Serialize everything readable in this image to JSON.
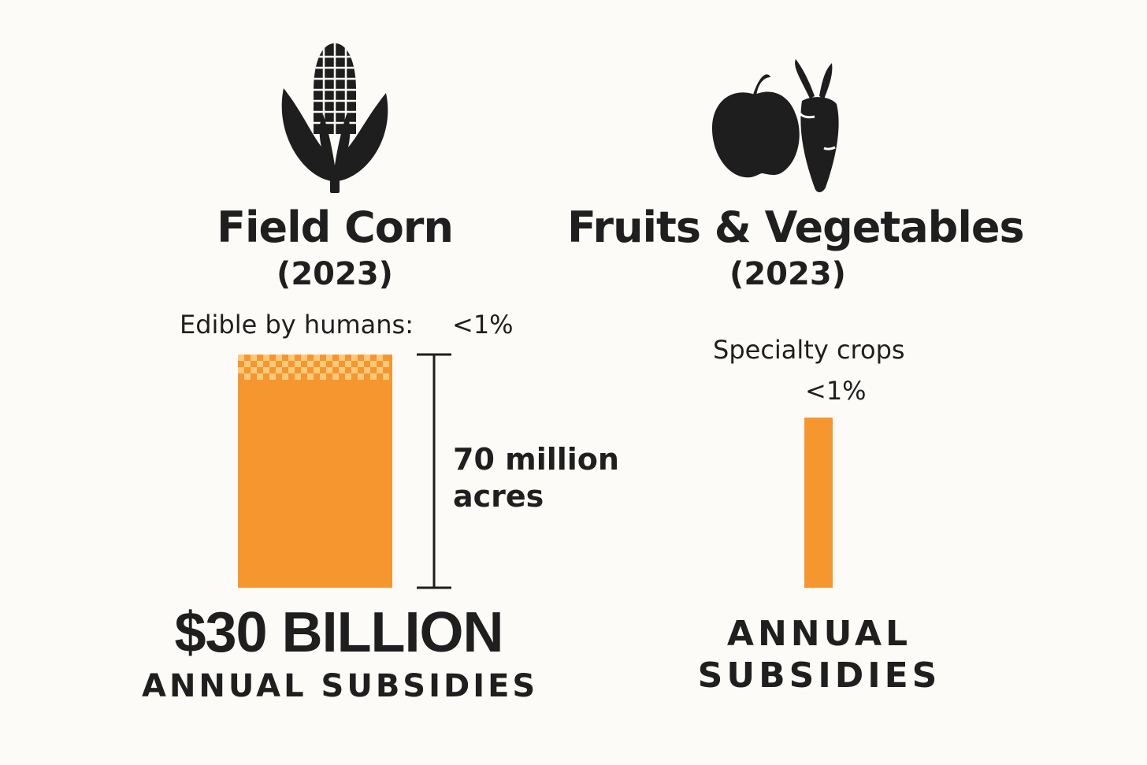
{
  "chart_data": [
    {
      "type": "bar",
      "title": "Field Corn",
      "subtitle": "(2023)",
      "icon": "corn-icon",
      "annotation_label": "Edible by humans:",
      "annotation_value": "<1%",
      "edible_share": 0.01,
      "range_label_line1": "70 million",
      "range_label_line2": "acres",
      "acres_million": 70,
      "headline_value": "$30 BILLION",
      "value_label": "ANNUAL SUBSIDIES",
      "bar_color": "#f5962e",
      "checker_light": "#fbc97b"
    },
    {
      "type": "bar",
      "title": "Fruits & Vegetables",
      "subtitle": "(2023)",
      "icon": "apple-carrot-icon",
      "annotation_label": "Specialty crops",
      "annotation_value": "<1%",
      "value_label_line1": "ANNUAL",
      "value_label_line2": "SUBSIDIES",
      "bar_color": "#f5962e"
    }
  ]
}
